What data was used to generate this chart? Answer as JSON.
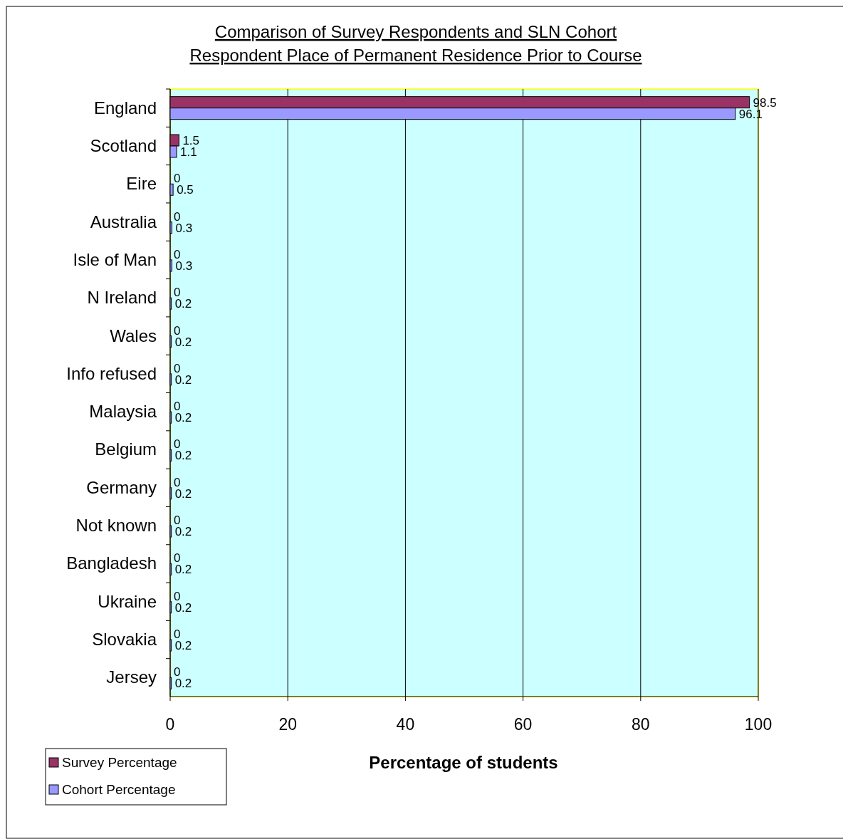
{
  "chart_data": {
    "type": "bar",
    "orientation": "horizontal",
    "title": "Comparison of Survey Respondents and SLN Cohort \nRespondent Place of Permanent Residence Prior to Course",
    "xlabel": "Percentage of students",
    "categories": [
      "England",
      "Scotland",
      "Eire",
      "Australia",
      "Isle of Man",
      "N Ireland",
      "Wales",
      "Info refused",
      "Malaysia",
      "Belgium",
      "Germany",
      "Not known",
      "Bangladesh",
      "Ukraine",
      "Slovakia",
      "Jersey"
    ],
    "series": [
      {
        "name": "Survey Percentage",
        "color": "#993366",
        "values": [
          98.5,
          1.5,
          0,
          0,
          0,
          0,
          0,
          0,
          0,
          0,
          0,
          0,
          0,
          0,
          0,
          0
        ]
      },
      {
        "name": "Cohort Percentage",
        "color": "#9999ff",
        "values": [
          96.1,
          1.1,
          0.5,
          0.3,
          0.3,
          0.2,
          0.2,
          0.2,
          0.2,
          0.2,
          0.2,
          0.2,
          0.2,
          0.2,
          0.2,
          0.2
        ]
      }
    ],
    "xlim": [
      0,
      100
    ],
    "xticks": [
      0,
      20,
      40,
      60,
      80,
      100
    ],
    "grid": "x",
    "legend": "bottom left",
    "data_labels": true
  }
}
